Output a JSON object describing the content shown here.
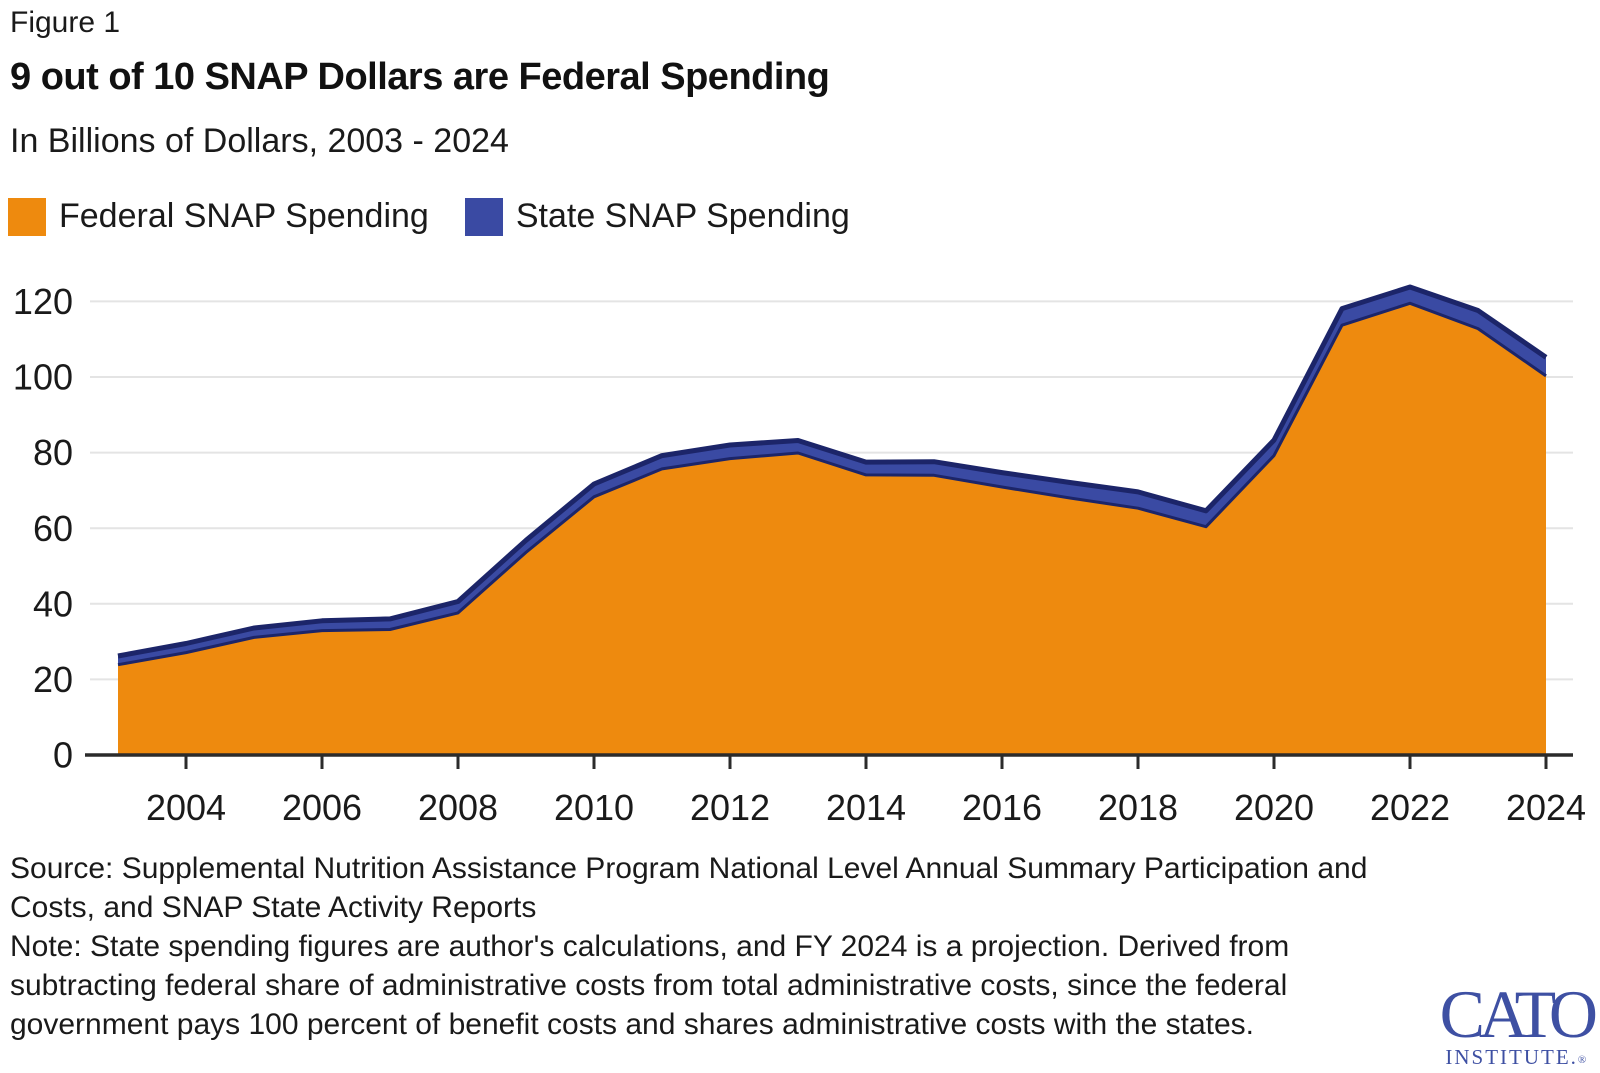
{
  "header": {
    "figure_label": "Figure 1",
    "title": "9 out of 10 SNAP Dollars are Federal Spending",
    "subtitle": "In Billions of Dollars, 2003 - 2024"
  },
  "legend": {
    "federal_label": "Federal SNAP Spending",
    "state_label": "State SNAP Spending"
  },
  "chart_data": {
    "type": "area",
    "stacked": true,
    "title": "9 out of 10 SNAP Dollars are Federal Spending",
    "subtitle": "In Billions of Dollars, 2003 - 2024",
    "xlabel": "",
    "ylabel": "Billions of Dollars",
    "x": [
      2003,
      2004,
      2005,
      2006,
      2007,
      2008,
      2009,
      2010,
      2011,
      2012,
      2013,
      2014,
      2015,
      2016,
      2017,
      2018,
      2019,
      2020,
      2021,
      2022,
      2023,
      2024
    ],
    "series": [
      {
        "name": "Federal SNAP Spending",
        "color": "#EE8A0E",
        "values": [
          23.9,
          27.1,
          31.1,
          32.9,
          33.2,
          37.6,
          53.6,
          68.3,
          75.7,
          78.4,
          79.9,
          74.1,
          74.0,
          70.9,
          68.0,
          65.3,
          60.4,
          79.2,
          113.7,
          119.5,
          112.8,
          100.3
        ]
      },
      {
        "name": "State SNAP Spending",
        "color": "#3A4AA3",
        "values": [
          2.3,
          2.4,
          2.5,
          2.6,
          2.8,
          3.0,
          3.2,
          3.4,
          3.5,
          3.6,
          3.3,
          3.4,
          3.6,
          3.8,
          4.1,
          4.3,
          4.2,
          4.1,
          4.4,
          4.3,
          4.8,
          4.9
        ]
      }
    ],
    "ylim": [
      0,
      130
    ],
    "yticks": [
      0,
      20,
      40,
      60,
      80,
      100,
      120
    ],
    "xticks": [
      2004,
      2006,
      2008,
      2010,
      2012,
      2014,
      2016,
      2018,
      2020,
      2022,
      2024
    ],
    "grid": true,
    "legend_position": "top-left",
    "edge_stroke_color": "#1C2569",
    "grid_color": "#E4E4E4",
    "axis_color": "#2B2B2B",
    "tick_label_color": "#1A1A1A"
  },
  "footer": {
    "source": "Source: Supplemental Nutrition Assistance Program National Level Annual Summary Participation and\nCosts, and SNAP State Activity Reports",
    "note": "Note: State spending figures are author's calculations, and FY 2024 is a projection. Derived from\nsubtracting federal share of administrative costs from total administrative costs, since the federal\ngovernment pays 100 percent of benefit costs and shares administrative costs with the states."
  },
  "logo": {
    "word": "CATO",
    "sub": "INSTITUTE.",
    "reg": "®",
    "color": "#3E50A3"
  }
}
